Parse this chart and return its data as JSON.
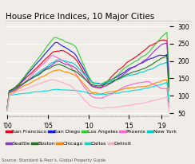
{
  "title": "House Price Indices, 10 Major Cities",
  "source": "Source: Standard & Poor’s, Global Property Guide",
  "xlabel_ticks": [
    "'00",
    "'05",
    "'10",
    "'15",
    "'19"
  ],
  "ylabel_ticks": [
    50,
    100,
    150,
    200,
    250,
    300
  ],
  "ylim": [
    45,
    310
  ],
  "cities": [
    "San Francisco",
    "San Diego",
    "Los Angeles",
    "Phoenix",
    "New York",
    "Seattle",
    "Boston",
    "Chicago",
    "Dallas",
    "Detroit"
  ],
  "colors": [
    "#e8001c",
    "#1a1adb",
    "#33cc33",
    "#ff66cc",
    "#00cccc",
    "#9933cc",
    "#1a7a1a",
    "#ff8800",
    "#00dddd",
    "#ffaacc"
  ],
  "background": "#f0ede8",
  "title_fontsize": 7.5,
  "tick_fontsize": 5.5,
  "legend_fontsize": 4.5
}
